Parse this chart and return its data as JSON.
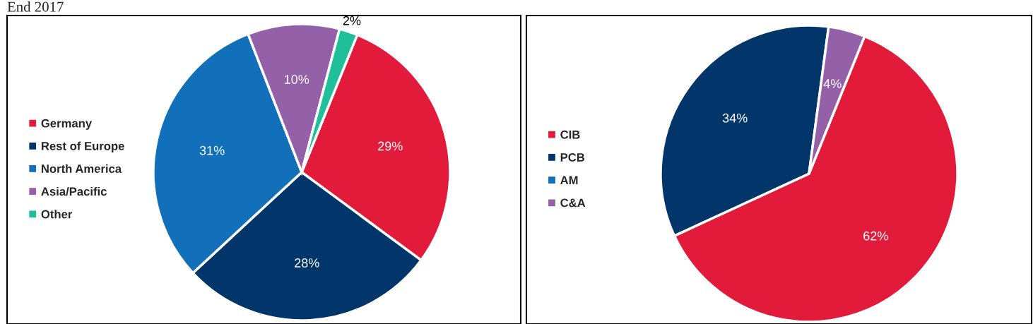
{
  "chart_data": [
    {
      "type": "pie",
      "title": "End 2017",
      "categories": [
        "Germany",
        "Rest of Europe",
        "North America",
        "Asia/Pacific",
        "Other"
      ],
      "values": [
        29,
        28,
        31,
        10,
        2
      ],
      "colors": [
        "#e31b3a",
        "#02366a",
        "#1170b9",
        "#9460a8",
        "#1fbf9a"
      ],
      "value_labels": [
        "29%",
        "28%",
        "31%",
        "10%",
        "2%"
      ],
      "legend": "left"
    },
    {
      "type": "pie",
      "categories": [
        "CIB",
        "PCB",
        "AM",
        "C&A"
      ],
      "values": [
        62,
        34,
        0,
        4
      ],
      "colors": [
        "#e31b3a",
        "#02366a",
        "#1170b9",
        "#9460a8"
      ],
      "value_labels": [
        "62%",
        "34%",
        null,
        "4%"
      ],
      "legend": "left"
    }
  ]
}
